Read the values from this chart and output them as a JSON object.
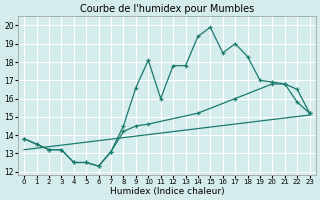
{
  "title": "Courbe de l'humidex pour Mumbles",
  "xlabel": "Humidex (Indice chaleur)",
  "xlim": [
    -0.5,
    23.5
  ],
  "ylim": [
    11.8,
    20.5
  ],
  "yticks": [
    12,
    13,
    14,
    15,
    16,
    17,
    18,
    19,
    20
  ],
  "xticks": [
    0,
    1,
    2,
    3,
    4,
    5,
    6,
    7,
    8,
    9,
    10,
    11,
    12,
    13,
    14,
    15,
    16,
    17,
    18,
    19,
    20,
    21,
    22,
    23
  ],
  "bg_color": "#d5ecec",
  "grid_color": "#ffffff",
  "line_color": "#1a7a6e",
  "line1_x": [
    0,
    1,
    2,
    3,
    4,
    5,
    6,
    7,
    8,
    9,
    10,
    11,
    12,
    13,
    14,
    15,
    16,
    17,
    18,
    19,
    20,
    21,
    22,
    23
  ],
  "line1_y": [
    13.8,
    13.5,
    13.2,
    13.2,
    12.5,
    12.5,
    12.3,
    13.1,
    14.5,
    16.6,
    18.1,
    16.0,
    17.8,
    17.8,
    19.4,
    19.9,
    18.5,
    19.0,
    18.3,
    17.0,
    16.9,
    16.8,
    15.8,
    15.2
  ],
  "line2_x": [
    0,
    1,
    2,
    3,
    4,
    5,
    6,
    7,
    8,
    9,
    10,
    14,
    17,
    20,
    21,
    22,
    23
  ],
  "line2_y": [
    13.8,
    13.5,
    13.2,
    13.2,
    12.5,
    12.5,
    12.3,
    13.1,
    14.2,
    14.5,
    14.6,
    15.2,
    16.0,
    16.8,
    16.8,
    16.5,
    15.2
  ],
  "line3_x": [
    0,
    23
  ],
  "line3_y": [
    13.2,
    15.1
  ]
}
